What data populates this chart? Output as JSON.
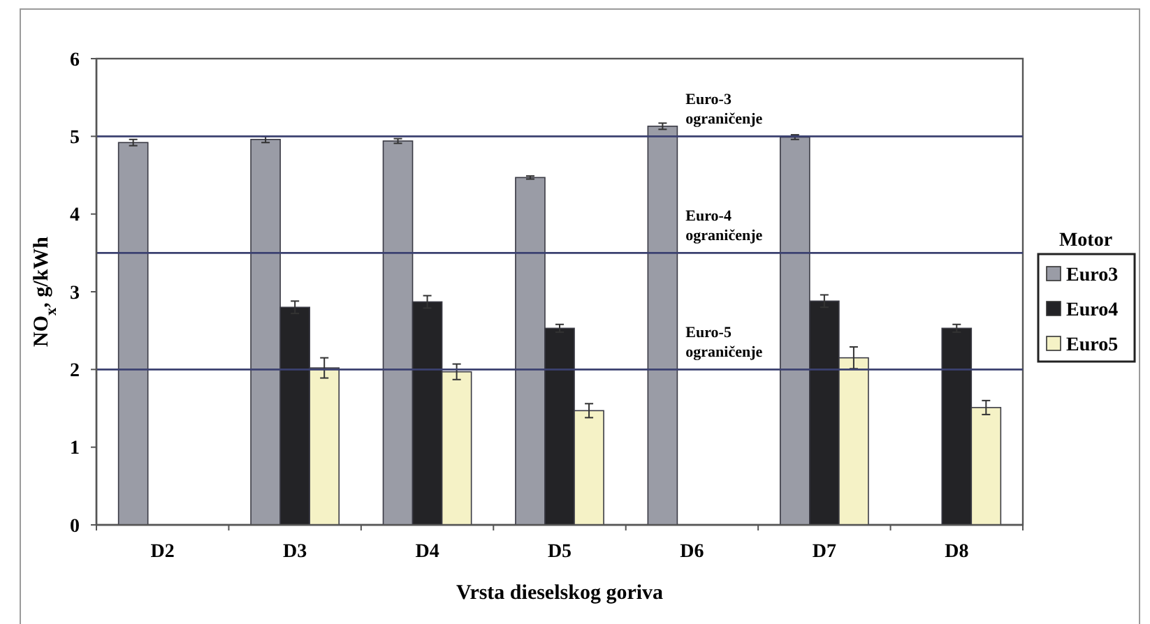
{
  "chart_data": {
    "type": "bar",
    "categories": [
      "D2",
      "D3",
      "D4",
      "D5",
      "D6",
      "D7",
      "D8"
    ],
    "series": [
      {
        "name": "Euro3",
        "color": "#9a9ca6",
        "values": [
          4.92,
          4.96,
          4.94,
          4.47,
          5.13,
          4.99,
          null
        ],
        "errors": [
          0.04,
          0.04,
          0.03,
          0.02,
          0.04,
          0.03,
          null
        ]
      },
      {
        "name": "Euro4",
        "color": "#232326",
        "values": [
          null,
          2.8,
          2.87,
          2.53,
          null,
          2.88,
          2.53
        ],
        "errors": [
          null,
          0.08,
          0.08,
          0.05,
          null,
          0.08,
          0.05
        ]
      },
      {
        "name": "Euro5",
        "color": "#f5f2c6",
        "values": [
          null,
          2.02,
          1.97,
          1.47,
          null,
          2.15,
          1.51
        ],
        "errors": [
          null,
          0.13,
          0.1,
          0.09,
          null,
          0.14,
          0.09
        ]
      }
    ],
    "xlabel": "Vrsta dieselskog goriva",
    "ylabel": "NO$_{x}$, g/kWh",
    "legend_title": "Motor",
    "ylim": [
      0,
      6
    ],
    "yticks": [
      0,
      1,
      2,
      3,
      4,
      5,
      6
    ],
    "ref_lines": [
      {
        "axis": "y",
        "value": 5,
        "label": "Euro-3 ograničenje",
        "color": "#3b4170"
      },
      {
        "axis": "y",
        "value": 3.5,
        "label": "Euro-4 ograničenje",
        "color": "#3b4170"
      },
      {
        "axis": "y",
        "value": 2,
        "label": "Euro-5 ograničenje",
        "color": "#3b4170"
      }
    ],
    "legend": "right"
  }
}
